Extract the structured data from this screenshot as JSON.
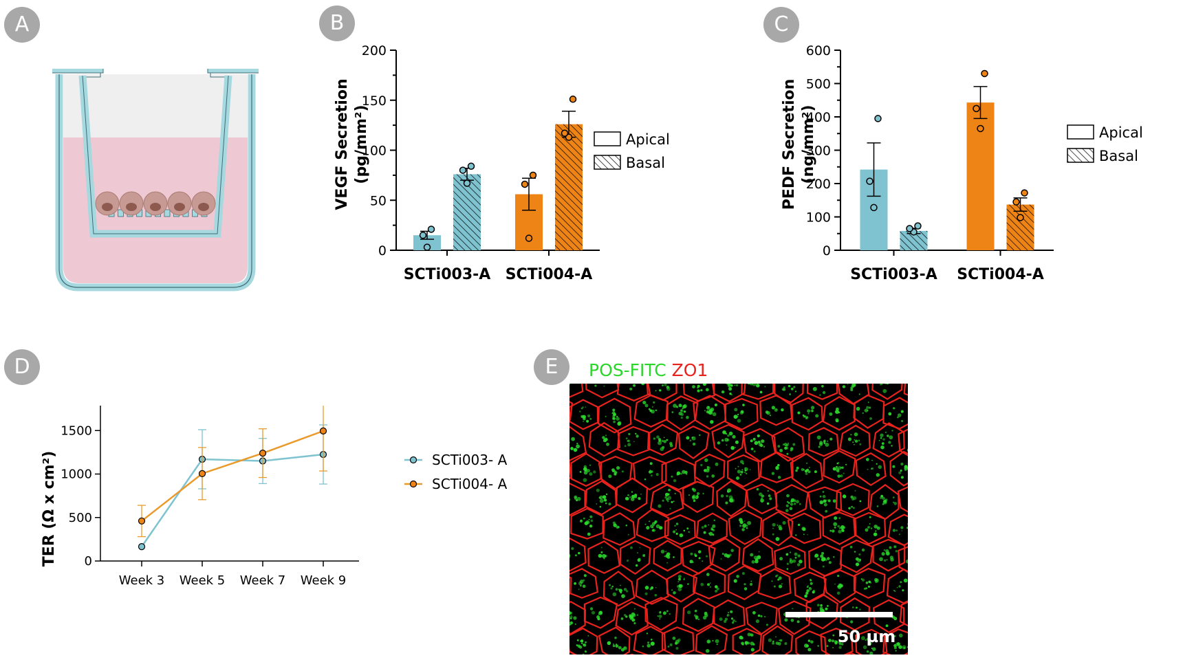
{
  "panels": {
    "A": {
      "label": "A"
    },
    "B": {
      "label": "B"
    },
    "C": {
      "label": "C"
    },
    "D": {
      "label": "D"
    },
    "E": {
      "label": "E"
    }
  },
  "micrograph": {
    "stain_green": "POS-FITC",
    "stain_red": "ZO1",
    "scale_label": "50 µm",
    "colors": {
      "cells": "#2bd62b",
      "junctions": "#e8231d",
      "background": "#000000"
    }
  },
  "colors": {
    "teal": "#7ec3cf",
    "orange": "#ef8416",
    "tealLine": "#7ec3cf",
    "orangeLine": "#e99a2b"
  },
  "chart_data": [
    {
      "panel": "B",
      "type": "bar",
      "categories": [
        "SCTi003-A",
        "SCTi004-A"
      ],
      "ylabel": "VEGF Secretion",
      "ylabel_unit": "(pg/mm²)",
      "ylim": [
        0,
        200
      ],
      "yticks": [
        0,
        50,
        100,
        150,
        200
      ],
      "legend": {
        "position": "right",
        "entries": [
          "Apical",
          "Basal"
        ]
      },
      "series": [
        {
          "name": "Apical",
          "values": [
            15,
            56
          ],
          "sem": [
            4,
            16
          ],
          "points": [
            [
              3,
              15,
              21
            ],
            [
              12,
              66,
              75
            ]
          ]
        },
        {
          "name": "Basal",
          "values": [
            76,
            126
          ],
          "sem": [
            6,
            13
          ],
          "points": [
            [
              67,
              80,
              84
            ],
            [
              113,
              117,
              151
            ]
          ]
        }
      ]
    },
    {
      "panel": "C",
      "type": "bar",
      "categories": [
        "SCTi003-A",
        "SCTi004-A"
      ],
      "ylabel": "PEDF Secretion",
      "ylabel_unit": "(ng/mm²)",
      "ylim": [
        0,
        600
      ],
      "yticks": [
        0,
        100,
        200,
        300,
        400,
        500,
        600
      ],
      "legend": {
        "position": "right",
        "entries": [
          "Apical",
          "Basal"
        ]
      },
      "series": [
        {
          "name": "Apical",
          "values": [
            242,
            443
          ],
          "sem": [
            80,
            48
          ],
          "points": [
            [
              128,
              207,
              395
            ],
            [
              365,
              425,
              530
            ]
          ]
        },
        {
          "name": "Basal",
          "values": [
            58,
            137
          ],
          "sem": [
            8,
            20
          ],
          "points": [
            [
              55,
              65,
              73
            ],
            [
              98,
              145,
              172
            ]
          ]
        }
      ]
    },
    {
      "panel": "D",
      "type": "line",
      "x": [
        "Week 3",
        "Week 5",
        "Week 7",
        "Week 9"
      ],
      "ylabel": "TER (Ω x cm²)",
      "ylim": [
        0,
        2000
      ],
      "yticks": [
        0,
        500,
        1000,
        1500,
        2000
      ],
      "legend": {
        "position": "right"
      },
      "series": [
        {
          "name": "SCTi003- A",
          "values": [
            165,
            1170,
            1150,
            1225
          ],
          "err": [
            0,
            340,
            260,
            340
          ]
        },
        {
          "name": "SCTi004- A",
          "values": [
            460,
            1005,
            1240,
            1495
          ],
          "err": [
            180,
            300,
            280,
            460
          ]
        }
      ]
    }
  ]
}
